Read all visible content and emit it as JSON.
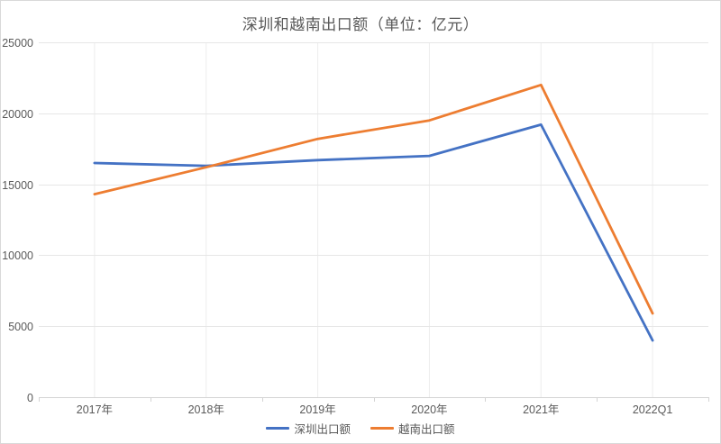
{
  "chart": {
    "title": "深圳和越南出口额（单位：亿元）"
  },
  "chart_data": {
    "type": "line",
    "title": "深圳和越南出口额（单位：亿元）",
    "categories": [
      "2017年",
      "2018年",
      "2019年",
      "2020年",
      "2021年",
      "2022Q1"
    ],
    "series": [
      {
        "name": "深圳出口额",
        "color": "#4472c4",
        "values": [
          16500,
          16300,
          16700,
          17000,
          19200,
          4000
        ]
      },
      {
        "name": "越南出口额",
        "color": "#ed7d31",
        "values": [
          14300,
          16200,
          18200,
          19500,
          22000,
          5900
        ]
      }
    ],
    "xlabel": "",
    "ylabel": "",
    "ylim": [
      0,
      25000
    ],
    "yticks": [
      0,
      5000,
      10000,
      15000,
      20000,
      25000
    ],
    "grid": true,
    "legend_position": "bottom"
  },
  "style_colors": {
    "axis_line": "#d4d4d4",
    "h_gridline": "#e6e6e6",
    "v_gridline": "#ededed",
    "tick": "#d4d4d4",
    "axis_text": "#595959"
  }
}
